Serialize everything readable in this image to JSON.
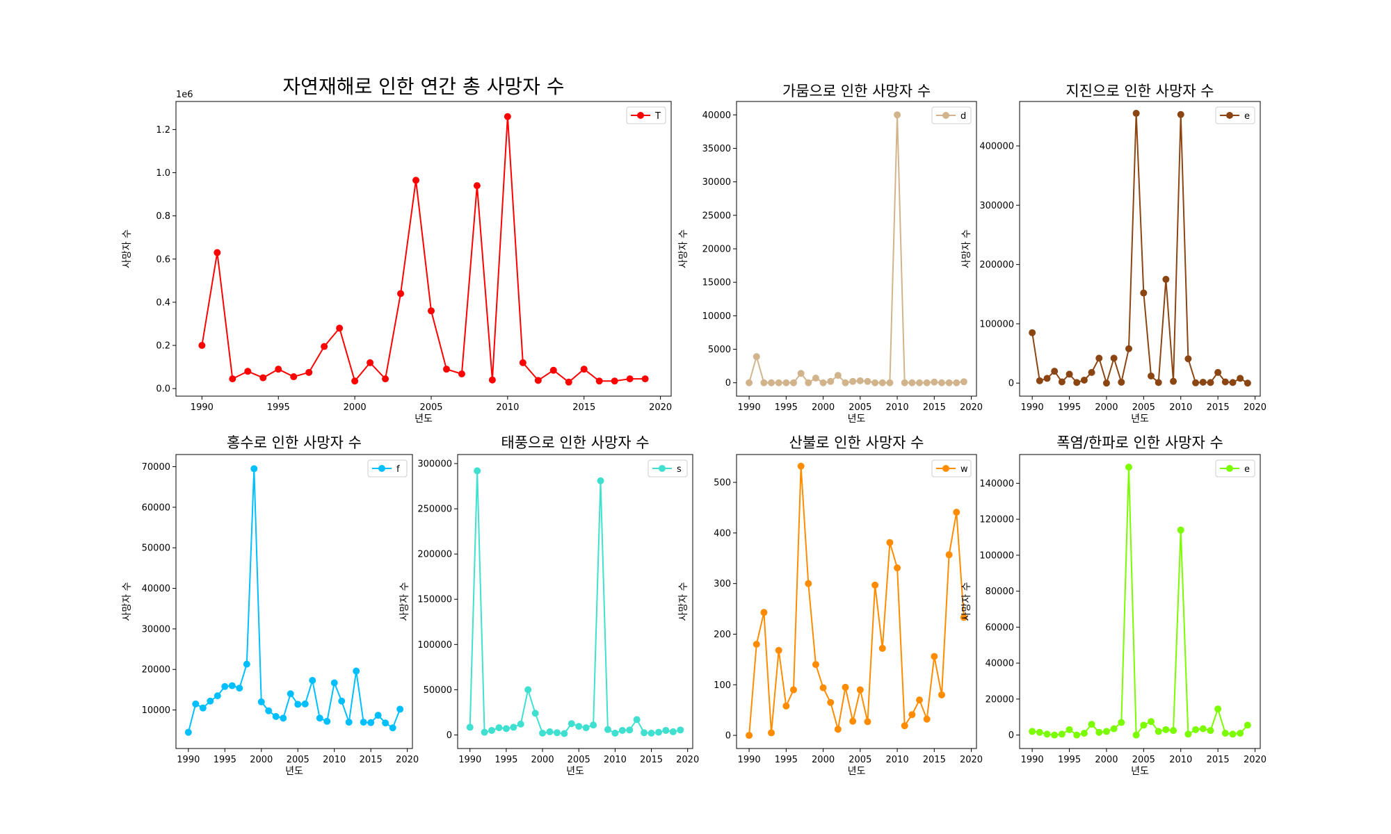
{
  "chart_data": [
    {
      "type": "line",
      "title": "자연재해로 인한 연간 총 사망자 수",
      "xlabel": "년도",
      "ylabel": "사망자 수",
      "offset_text": "1e6",
      "xlim": [
        1988.3,
        2020.7
      ],
      "ylim": [
        -0.035,
        1.33
      ],
      "xticks": [
        1990,
        1995,
        2000,
        2005,
        2010,
        2015,
        2020
      ],
      "yticks": [
        0.0,
        0.2,
        0.4,
        0.6,
        0.8,
        1.0,
        1.2
      ],
      "ytick_labels": [
        "0.0",
        "0.2",
        "0.4",
        "0.6",
        "0.8",
        "1.0",
        "1.2"
      ],
      "legend_position": "top-right",
      "color": "#ff0000",
      "x": [
        1990,
        1991,
        1992,
        1993,
        1994,
        1995,
        1996,
        1997,
        1998,
        1999,
        2000,
        2001,
        2002,
        2003,
        2004,
        2005,
        2006,
        2007,
        2008,
        2009,
        2010,
        2011,
        2012,
        2013,
        2014,
        2015,
        2016,
        2017,
        2018,
        2019
      ],
      "series": [
        {
          "name": "T",
          "values": [
            0.2,
            0.63,
            0.045,
            0.08,
            0.05,
            0.09,
            0.055,
            0.075,
            0.195,
            0.28,
            0.035,
            0.12,
            0.045,
            0.44,
            0.965,
            0.36,
            0.09,
            0.068,
            0.94,
            0.04,
            1.26,
            0.12,
            0.038,
            0.085,
            0.03,
            0.09,
            0.035,
            0.035,
            0.045,
            0.045
          ]
        }
      ]
    },
    {
      "type": "line",
      "title": "가뭄으로 인한 사망자 수",
      "xlabel": "년도",
      "ylabel": "사망자 수",
      "xlim": [
        1988.3,
        2020.7
      ],
      "ylim": [
        -2000,
        42000
      ],
      "xticks": [
        1990,
        1995,
        2000,
        2005,
        2010,
        2015,
        2020
      ],
      "yticks": [
        0,
        5000,
        10000,
        15000,
        20000,
        25000,
        30000,
        35000,
        40000
      ],
      "ytick_labels": [
        "0",
        "5000",
        "10000",
        "15000",
        "20000",
        "25000",
        "30000",
        "35000",
        "40000"
      ],
      "legend_position": "top-right",
      "color": "#d2b48c",
      "x": [
        1990,
        1991,
        1992,
        1993,
        1994,
        1995,
        1996,
        1997,
        1998,
        1999,
        2000,
        2001,
        2002,
        2003,
        2004,
        2005,
        2006,
        2007,
        2008,
        2009,
        2010,
        2011,
        2012,
        2013,
        2014,
        2015,
        2016,
        2017,
        2018,
        2019
      ],
      "series": [
        {
          "name": "d",
          "values": [
            0,
            3900,
            0,
            0,
            0,
            0,
            0,
            1400,
            0,
            700,
            0,
            200,
            1100,
            0,
            200,
            300,
            200,
            0,
            0,
            0,
            40000,
            0,
            0,
            0,
            0,
            100,
            0,
            0,
            0,
            150
          ]
        }
      ]
    },
    {
      "type": "line",
      "title": "지진으로 인한 사망자 수",
      "xlabel": "년도",
      "ylabel": "사망자 수",
      "xlim": [
        1988.3,
        2020.7
      ],
      "ylim": [
        -22000,
        475000
      ],
      "xticks": [
        1990,
        1995,
        2000,
        2005,
        2010,
        2015,
        2020
      ],
      "yticks": [
        0,
        100000,
        200000,
        300000,
        400000
      ],
      "ytick_labels": [
        "0",
        "100000",
        "200000",
        "300000",
        "400000"
      ],
      "legend_position": "top-right",
      "color": "#8b4513",
      "x": [
        1990,
        1991,
        1992,
        1993,
        1994,
        1995,
        1996,
        1997,
        1998,
        1999,
        2000,
        2001,
        2002,
        2003,
        2004,
        2005,
        2006,
        2007,
        2008,
        2009,
        2010,
        2011,
        2012,
        2013,
        2014,
        2015,
        2016,
        2017,
        2018,
        2019
      ],
      "series": [
        {
          "name": "e",
          "values": [
            85000,
            4000,
            8000,
            20000,
            2000,
            15000,
            1000,
            5000,
            18000,
            42000,
            0,
            42000,
            1500,
            58000,
            455000,
            152000,
            12000,
            1000,
            175000,
            3000,
            453000,
            41000,
            500,
            1500,
            1000,
            18000,
            2000,
            1000,
            8000,
            0
          ]
        }
      ]
    },
    {
      "type": "line",
      "title": "홍수로 인한 사망자 수",
      "xlabel": "년도",
      "ylabel": "사망자 수",
      "xlim": [
        1988.3,
        2020.7
      ],
      "ylim": [
        500,
        73000
      ],
      "xticks": [
        1990,
        1995,
        2000,
        2005,
        2010,
        2015,
        2020
      ],
      "yticks": [
        10000,
        20000,
        30000,
        40000,
        50000,
        60000,
        70000
      ],
      "ytick_labels": [
        "10000",
        "20000",
        "30000",
        "40000",
        "50000",
        "60000",
        "70000"
      ],
      "legend_position": "top-right",
      "color": "#00bfff",
      "x": [
        1990,
        1991,
        1992,
        1993,
        1994,
        1995,
        1996,
        1997,
        1998,
        1999,
        2000,
        2001,
        2002,
        2003,
        2004,
        2005,
        2006,
        2007,
        2008,
        2009,
        2010,
        2011,
        2012,
        2013,
        2014,
        2015,
        2016,
        2017,
        2018,
        2019
      ],
      "series": [
        {
          "name": "f",
          "values": [
            4500,
            11500,
            10500,
            12200,
            13500,
            15800,
            16000,
            15400,
            21300,
            69500,
            12000,
            9800,
            8400,
            8000,
            14000,
            11400,
            11500,
            17300,
            8000,
            7200,
            16700,
            12200,
            7000,
            19600,
            7000,
            6900,
            8700,
            6800,
            5600,
            10200
          ]
        }
      ]
    },
    {
      "type": "line",
      "title": "태풍으로 인한 사망자 수",
      "xlabel": "년도",
      "ylabel": "사망자 수",
      "xlim": [
        1988.3,
        2020.7
      ],
      "ylim": [
        -15000,
        310000
      ],
      "xticks": [
        1990,
        1995,
        2000,
        2005,
        2010,
        2015,
        2020
      ],
      "yticks": [
        0,
        50000,
        100000,
        150000,
        200000,
        250000,
        300000
      ],
      "ytick_labels": [
        "0",
        "50000",
        "100000",
        "150000",
        "200000",
        "250000",
        "300000"
      ],
      "legend_position": "top-right",
      "color": "#40e0d0",
      "x": [
        1990,
        1991,
        1992,
        1993,
        1994,
        1995,
        1996,
        1997,
        1998,
        1999,
        2000,
        2001,
        2002,
        2003,
        2004,
        2005,
        2006,
        2007,
        2008,
        2009,
        2010,
        2011,
        2012,
        2013,
        2014,
        2015,
        2016,
        2017,
        2018,
        2019
      ],
      "series": [
        {
          "name": "s",
          "values": [
            8500,
            292000,
            3000,
            5000,
            8000,
            7000,
            8500,
            12000,
            50000,
            24000,
            2000,
            3500,
            2500,
            1500,
            12500,
            9500,
            8000,
            11000,
            281000,
            6000,
            2000,
            5000,
            5500,
            17000,
            2500,
            2000,
            3000,
            5000,
            3500,
            5500
          ]
        }
      ]
    },
    {
      "type": "line",
      "title": "산불로 인한 사망자 수",
      "xlabel": "년도",
      "ylabel": "사망자 수",
      "xlim": [
        1988.3,
        2020.7
      ],
      "ylim": [
        -26,
        555
      ],
      "xticks": [
        1990,
        1995,
        2000,
        2005,
        2010,
        2015,
        2020
      ],
      "yticks": [
        0,
        100,
        200,
        300,
        400,
        500
      ],
      "ytick_labels": [
        "0",
        "100",
        "200",
        "300",
        "400",
        "500"
      ],
      "legend_position": "top-right",
      "color": "#ff8c00",
      "x": [
        1990,
        1991,
        1992,
        1993,
        1994,
        1995,
        1996,
        1997,
        1998,
        1999,
        2000,
        2001,
        2002,
        2003,
        2004,
        2005,
        2006,
        2007,
        2008,
        2009,
        2010,
        2011,
        2012,
        2013,
        2014,
        2015,
        2016,
        2017,
        2018,
        2019
      ],
      "series": [
        {
          "name": "w",
          "values": [
            0,
            180,
            243,
            5,
            168,
            58,
            90,
            532,
            300,
            140,
            94,
            65,
            12,
            95,
            28,
            90,
            27,
            297,
            172,
            381,
            331,
            19,
            41,
            70,
            32,
            156,
            80,
            357,
            441,
            233
          ]
        }
      ]
    },
    {
      "type": "line",
      "title": "폭염/한파로 인한 사망자 수",
      "xlabel": "년도",
      "ylabel": "사망자 수",
      "xlim": [
        1988.3,
        2020.7
      ],
      "ylim": [
        -7500,
        156000
      ],
      "xticks": [
        1990,
        1995,
        2000,
        2005,
        2010,
        2015,
        2020
      ],
      "yticks": [
        0,
        20000,
        40000,
        60000,
        80000,
        100000,
        120000,
        140000
      ],
      "ytick_labels": [
        "0",
        "20000",
        "40000",
        "60000",
        "80000",
        "100000",
        "120000",
        "140000"
      ],
      "legend_position": "top-right",
      "color": "#7cfc00",
      "x": [
        1990,
        1991,
        1992,
        1993,
        1994,
        1995,
        1996,
        1997,
        1998,
        1999,
        2000,
        2001,
        2002,
        2003,
        2004,
        2005,
        2006,
        2007,
        2008,
        2009,
        2010,
        2011,
        2012,
        2013,
        2014,
        2015,
        2016,
        2017,
        2018,
        2019
      ],
      "series": [
        {
          "name": "e",
          "values": [
            2000,
            1500,
            500,
            0,
            500,
            3000,
            0,
            1000,
            6000,
            1500,
            2000,
            3500,
            7000,
            149000,
            0,
            5500,
            7500,
            2000,
            3000,
            2500,
            114000,
            500,
            3000,
            3500,
            2500,
            14500,
            1000,
            500,
            1000,
            5500
          ]
        }
      ]
    }
  ]
}
